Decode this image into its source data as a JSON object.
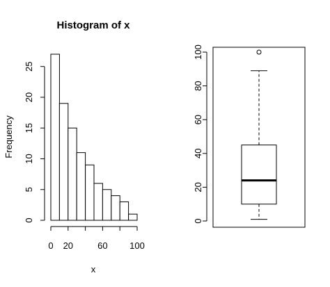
{
  "chart_data": [
    {
      "type": "bar",
      "title": "Histogram of x",
      "xlabel": "x",
      "ylabel": "Frequency",
      "bins": [
        {
          "from": 0,
          "to": 10,
          "count": 27
        },
        {
          "from": 10,
          "to": 20,
          "count": 19
        },
        {
          "from": 20,
          "to": 30,
          "count": 15
        },
        {
          "from": 30,
          "to": 40,
          "count": 11
        },
        {
          "from": 40,
          "to": 50,
          "count": 9
        },
        {
          "from": 50,
          "to": 60,
          "count": 6
        },
        {
          "from": 60,
          "to": 70,
          "count": 5
        },
        {
          "from": 70,
          "to": 80,
          "count": 4
        },
        {
          "from": 80,
          "to": 90,
          "count": 3
        },
        {
          "from": 90,
          "to": 100,
          "count": 1
        }
      ],
      "xticks": [
        "0",
        "20",
        "60",
        "100"
      ],
      "xtick_values": [
        0,
        20,
        60,
        100
      ],
      "yticks": [
        "0",
        "5",
        "10",
        "15",
        "20",
        "25"
      ],
      "ytick_values": [
        0,
        5,
        10,
        15,
        20,
        25
      ],
      "xlim": [
        0,
        100
      ],
      "ylim": [
        0,
        27
      ]
    },
    {
      "type": "box",
      "title": "",
      "ylabel": "",
      "min": 1,
      "q1": 10,
      "median": 24,
      "q3": 45,
      "whisker_high": 89,
      "outliers": [
        100
      ],
      "yticks": [
        "0",
        "20",
        "40",
        "60",
        "80",
        "100"
      ],
      "ytick_values": [
        0,
        20,
        40,
        60,
        80,
        100
      ],
      "ylim": [
        0,
        100
      ]
    }
  ]
}
